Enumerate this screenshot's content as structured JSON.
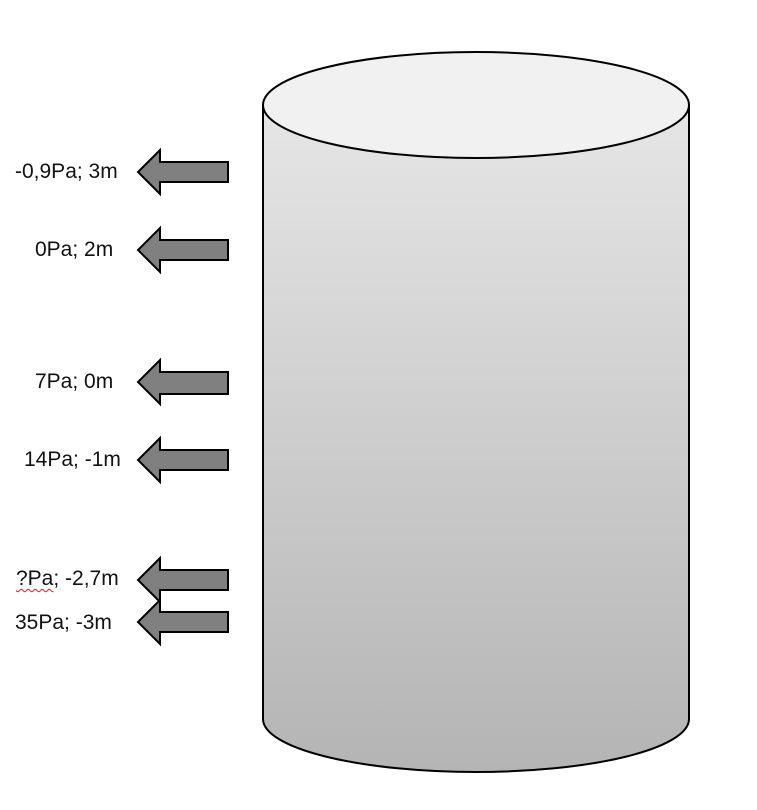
{
  "diagram": {
    "cylinder": {
      "fill_top": "#f1f1f1",
      "fill_gradient_top": "#e6e6e6",
      "fill_gradient_bottom": "#b4b4b4",
      "stroke": "#000000"
    },
    "arrow_color": "#808080",
    "labels": [
      {
        "pressure": "-0,9Pa",
        "height": "3m",
        "text": "-0,9Pa; 3m"
      },
      {
        "pressure": "0Pa",
        "height": "2m",
        "text": "0Pa; 2m"
      },
      {
        "pressure": "7Pa",
        "height": "0m",
        "text": "7Pa; 0m"
      },
      {
        "pressure": "14Pa",
        "height": "-1m",
        "text": "14Pa; -1m"
      },
      {
        "pressure": "?Pa",
        "height": "-2,7m",
        "text_unknown": "?Pa",
        "text_rest": "; -2,7m"
      },
      {
        "pressure": "35Pa",
        "height": "-3m",
        "text": "35Pa; -3m"
      }
    ]
  }
}
